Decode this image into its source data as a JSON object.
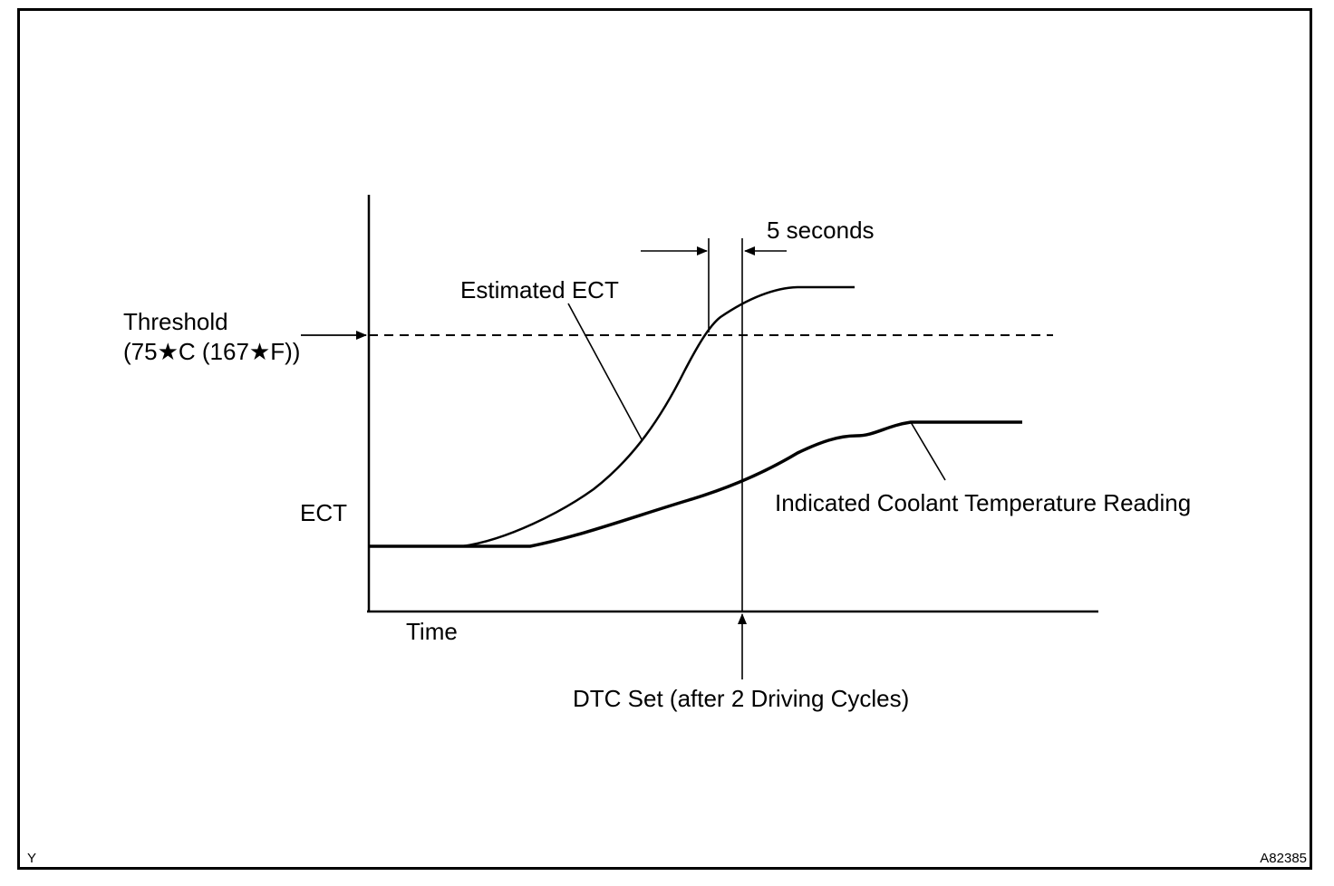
{
  "diagram": {
    "y_axis_label": "ECT",
    "x_axis_label": "Time",
    "threshold": {
      "label_line1": "Threshold",
      "label_line2": "(75★C (167★F))"
    },
    "estimated_curve_label": "Estimated ECT",
    "indicated_curve_label": "Indicated Coolant Temperature Reading",
    "interval_label": "5 seconds",
    "dtc_label": "DTC Set (after 2 Driving Cycles)"
  },
  "footer": {
    "left_code": "Y",
    "right_code": "A82385"
  },
  "colors": {
    "ink": "#000000",
    "background": "#ffffff"
  }
}
